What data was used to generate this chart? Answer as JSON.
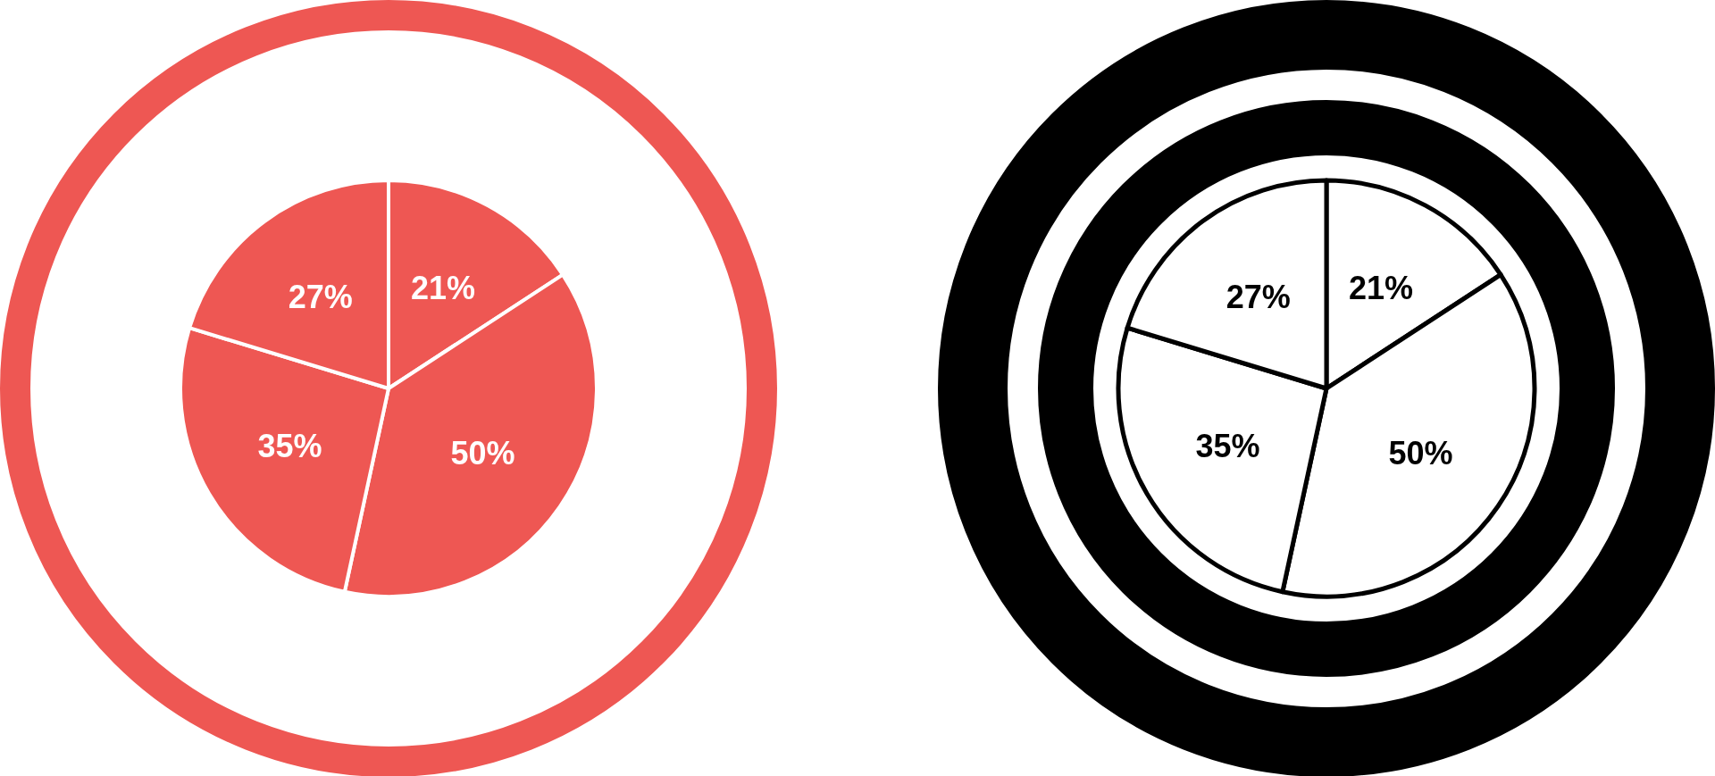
{
  "chart_data": [
    {
      "type": "pie",
      "categories": [
        null,
        null,
        null,
        null
      ],
      "values": [
        21,
        50,
        35,
        27
      ],
      "colors": [
        "#ee5753",
        "#ee5753",
        "#ee5753",
        "#ee5753"
      ],
      "value_labels": [
        "21%",
        "50%",
        "35%",
        "27%"
      ]
    },
    {
      "type": "pie",
      "categories": [
        null,
        null,
        null,
        null
      ],
      "values": [
        21,
        50,
        35,
        27
      ],
      "colors": [
        "#ffffff",
        "#ffffff",
        "#ffffff",
        "#ffffff"
      ],
      "value_labels": [
        "21%",
        "50%",
        "35%",
        "27%"
      ]
    }
  ]
}
